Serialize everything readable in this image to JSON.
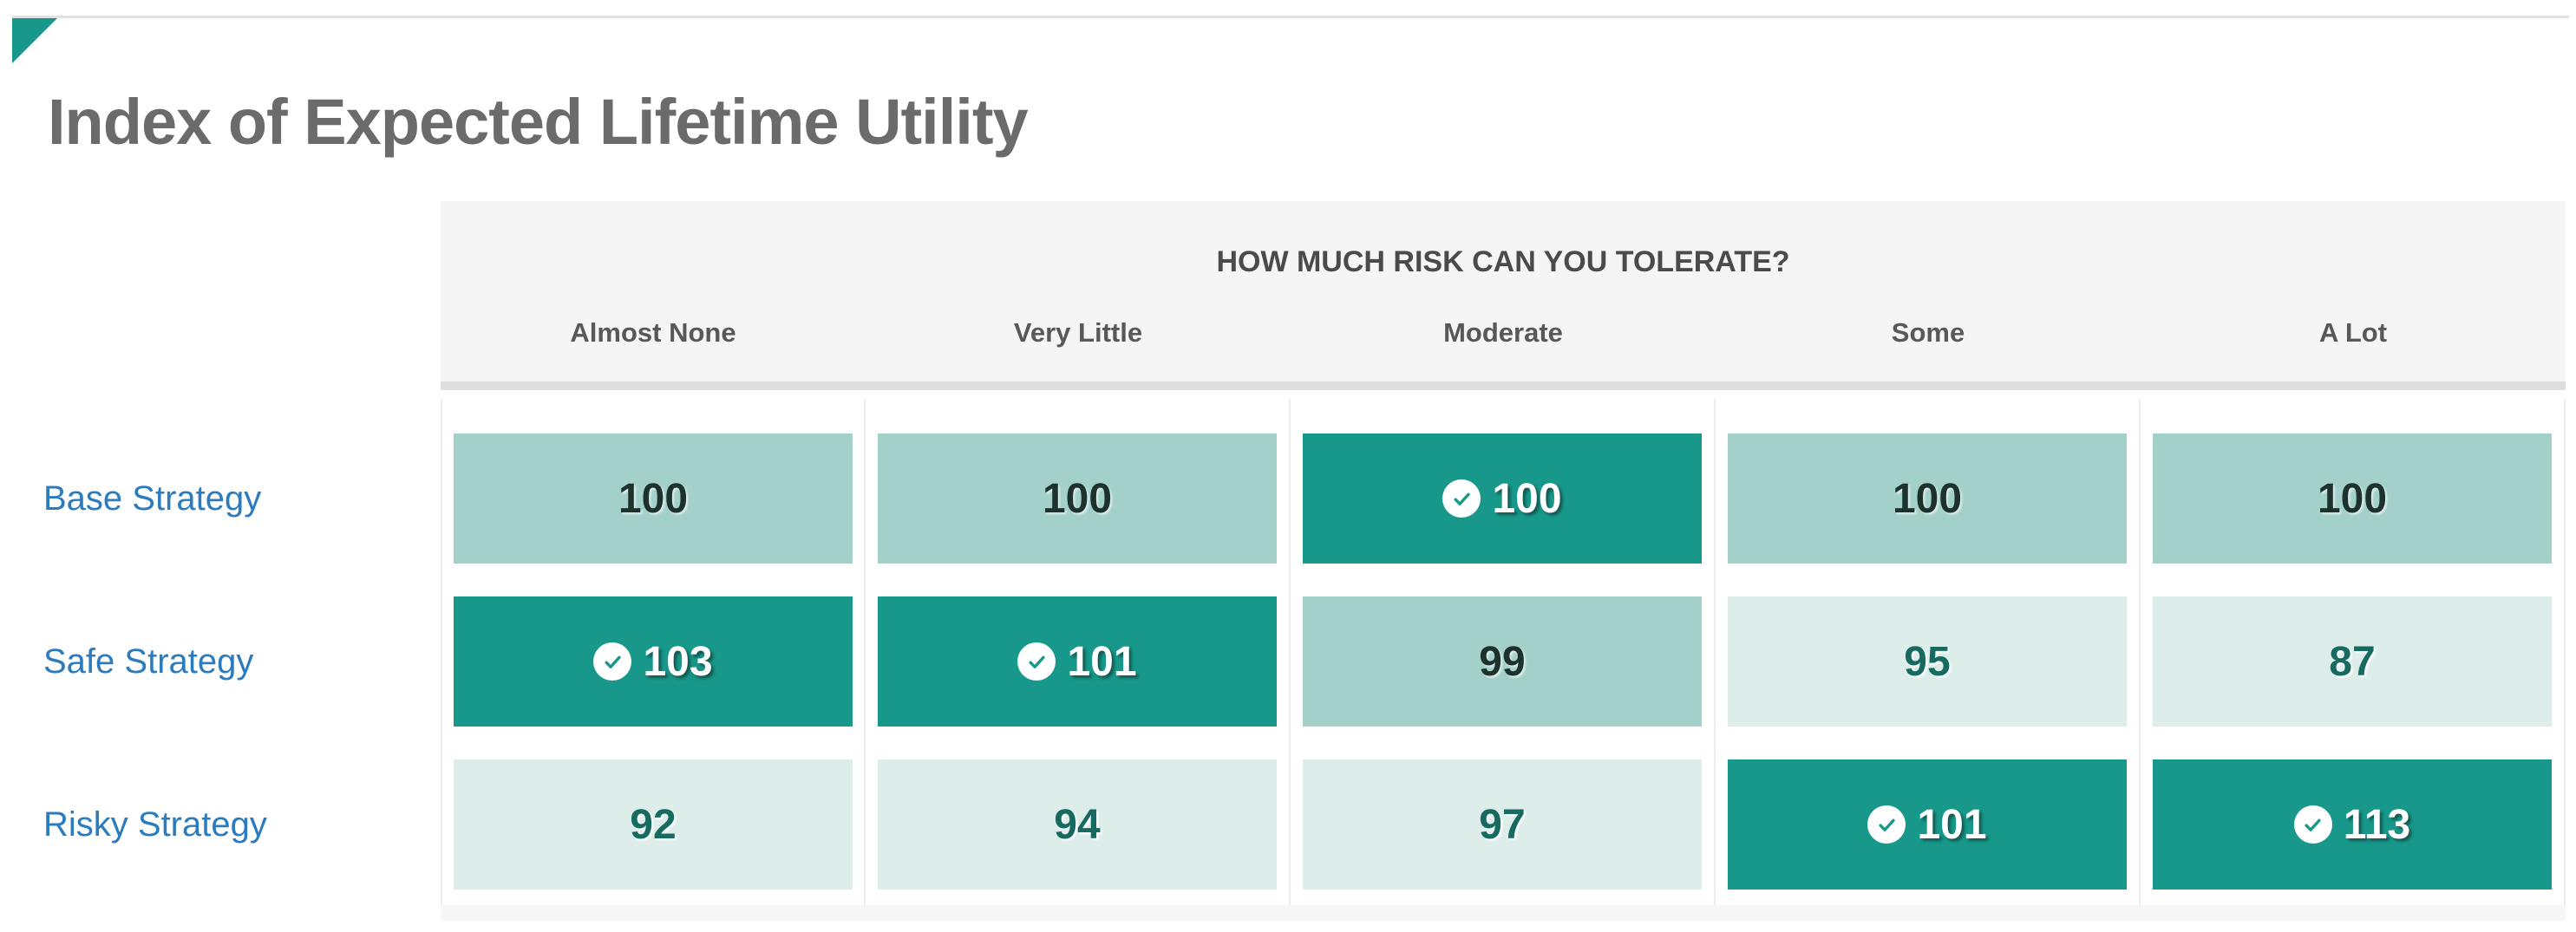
{
  "page": {
    "title": "Index of Expected Lifetime Utility"
  },
  "riskTable": {
    "header": "HOW MUCH RISK CAN YOU TOLERATE?",
    "columns": [
      "Almost None",
      "Very Little",
      "Moderate",
      "Some",
      "A Lot"
    ],
    "rows": [
      {
        "label": "Base Strategy",
        "cells": [
          {
            "value": "100",
            "shade": "medium",
            "checked": false
          },
          {
            "value": "100",
            "shade": "medium",
            "checked": false
          },
          {
            "value": "100",
            "shade": "dark",
            "checked": true
          },
          {
            "value": "100",
            "shade": "medium",
            "checked": false
          },
          {
            "value": "100",
            "shade": "medium",
            "checked": false
          }
        ]
      },
      {
        "label": "Safe Strategy",
        "cells": [
          {
            "value": "103",
            "shade": "dark",
            "checked": true
          },
          {
            "value": "101",
            "shade": "dark",
            "checked": true
          },
          {
            "value": "99",
            "shade": "medium",
            "checked": false
          },
          {
            "value": "95",
            "shade": "light",
            "checked": false
          },
          {
            "value": "87",
            "shade": "light",
            "checked": false
          }
        ]
      },
      {
        "label": "Risky Strategy",
        "cells": [
          {
            "value": "92",
            "shade": "light",
            "checked": false
          },
          {
            "value": "94",
            "shade": "light",
            "checked": false
          },
          {
            "value": "97",
            "shade": "light",
            "checked": false
          },
          {
            "value": "101",
            "shade": "dark",
            "checked": true
          },
          {
            "value": "113",
            "shade": "dark",
            "checked": true
          }
        ]
      }
    ]
  },
  "chart_data": {
    "type": "heatmap",
    "title": "Index of Expected Lifetime Utility",
    "x_group_label": "HOW MUCH RISK CAN YOU TOLERATE?",
    "columns": [
      "Almost None",
      "Very Little",
      "Moderate",
      "Some",
      "A Lot"
    ],
    "rows": [
      "Base Strategy",
      "Safe Strategy",
      "Risky Strategy"
    ],
    "values": [
      [
        100,
        100,
        100,
        100,
        100
      ],
      [
        103,
        101,
        99,
        95,
        87
      ],
      [
        92,
        94,
        97,
        101,
        113
      ]
    ],
    "checked_cells": [
      [
        0,
        2
      ],
      [
        1,
        0
      ],
      [
        1,
        1
      ],
      [
        2,
        3
      ],
      [
        2,
        4
      ]
    ],
    "legend_position": "none",
    "grid": false
  },
  "colors": {
    "accent_teal": "#17988a",
    "medium_teal": "#a3d1ca",
    "light_teal": "#ddeeea",
    "header_bg": "#f5f5f6",
    "header_border": "#dedede",
    "link_blue": "#2b7bbf",
    "title_gray": "#6b6b6c"
  }
}
